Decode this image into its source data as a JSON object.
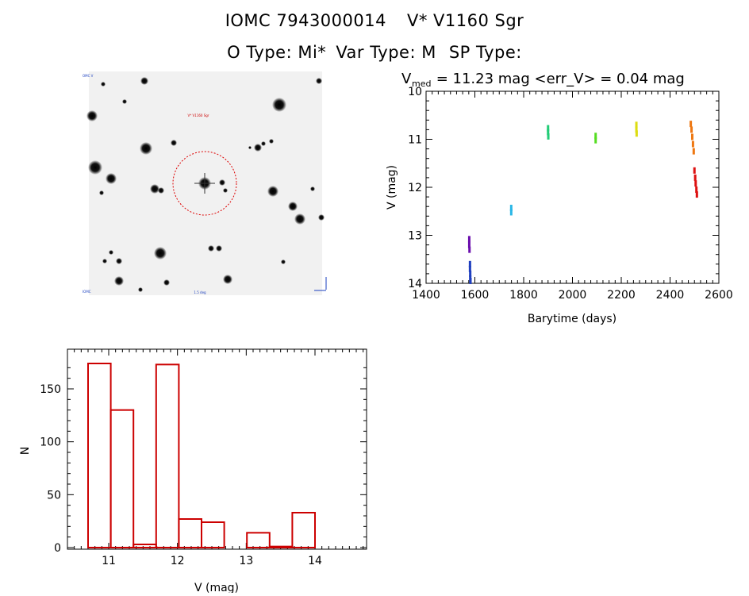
{
  "header": {
    "object_id": "IOMC 7943000014",
    "star_name": "V* V1160 Sgr",
    "o_type": "O Type: Mi*",
    "var_type": "Var Type: M",
    "sp_type": "SP Type:"
  },
  "finder": {
    "target_label": "V* V1160 Sgr",
    "corner_tl": "OMC V",
    "corner_bl": "IOMC",
    "bottom_label": "1.5 deg"
  },
  "colors": {
    "axis": "#000000",
    "hist_bar": "#cc0000",
    "circle": "#dd0000"
  },
  "chart_data": [
    {
      "type": "scatter",
      "title_prefix": "V",
      "title_sub": "med",
      "title_rest": " = 11.23 mag <err_V> = 0.04 mag",
      "xlabel": "Barytime (days)",
      "ylabel": "V (mag)",
      "xlim": [
        1400,
        2600
      ],
      "ylim": [
        14,
        10
      ],
      "xticks": [
        1400,
        1600,
        1800,
        2000,
        2200,
        2400,
        2600
      ],
      "yticks": [
        10,
        11,
        12,
        13,
        14
      ],
      "series": [
        {
          "name": "g1",
          "color": "#6a0dad",
          "x": [
            1577,
            1577,
            1578
          ],
          "y": [
            13.08,
            13.2,
            13.3
          ]
        },
        {
          "name": "g2",
          "color": "#1f3fbf",
          "x": [
            1580,
            1580,
            1581,
            1581,
            1582
          ],
          "y": [
            13.6,
            13.7,
            13.8,
            13.9,
            13.95
          ]
        },
        {
          "name": "g3",
          "color": "#29b6e6",
          "x": [
            1749,
            1749
          ],
          "y": [
            12.43,
            12.52
          ]
        },
        {
          "name": "g4",
          "color": "#22cc77",
          "x": [
            1900,
            1900,
            1901
          ],
          "y": [
            10.77,
            10.85,
            10.94
          ]
        },
        {
          "name": "g5",
          "color": "#55dd22",
          "x": [
            2095,
            2095
          ],
          "y": [
            10.93,
            11.02
          ]
        },
        {
          "name": "g6",
          "color": "#dddd11",
          "x": [
            2262,
            2262,
            2263
          ],
          "y": [
            10.7,
            10.8,
            10.88
          ]
        },
        {
          "name": "g7",
          "color": "#ee7711",
          "x": [
            2485,
            2488,
            2491,
            2494,
            2497
          ],
          "y": [
            10.68,
            10.8,
            10.95,
            11.1,
            11.25
          ]
        },
        {
          "name": "g8",
          "color": "#dd1111",
          "x": [
            2500,
            2503,
            2505,
            2508,
            2510
          ],
          "y": [
            11.65,
            11.8,
            11.92,
            12.05,
            12.15
          ]
        }
      ]
    },
    {
      "type": "bar",
      "xlabel": "V (mag)",
      "ylabel": "N",
      "xlim": [
        10.4,
        14.75
      ],
      "ylim": [
        0,
        180
      ],
      "xticks": [
        11,
        12,
        13,
        14
      ],
      "yticks": [
        0,
        50,
        100,
        150
      ],
      "bin_edges": [
        10.7,
        11.03,
        11.36,
        11.69,
        12.02,
        12.35,
        12.68,
        13.01,
        13.34,
        13.67,
        14.0
      ],
      "values": [
        174,
        130,
        3,
        173,
        27,
        24,
        0,
        14,
        1,
        33
      ]
    }
  ]
}
